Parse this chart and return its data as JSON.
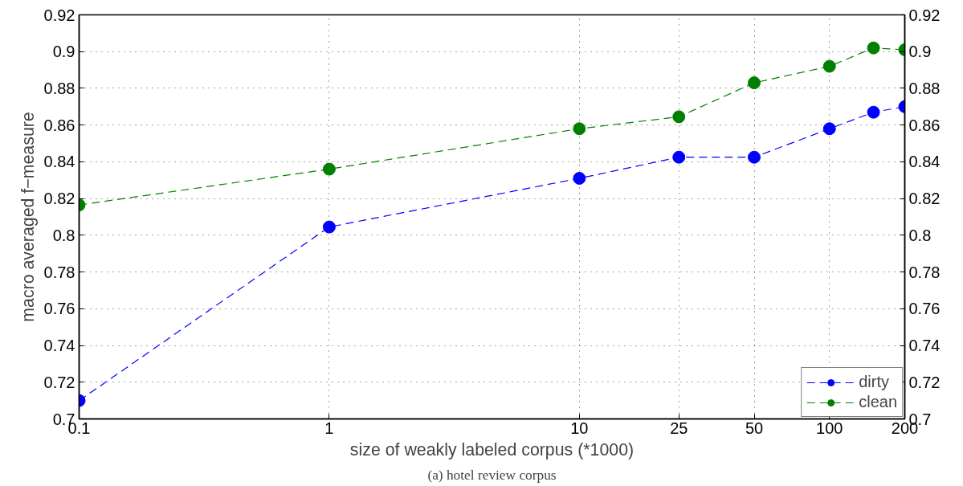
{
  "chart_data": {
    "type": "line",
    "xlabel": "size of weakly labeled corpus (*1000)",
    "ylabel": "macro averaged f−measure",
    "annotations": [
      "(a) hotel review corpus"
    ],
    "x": [
      0.1,
      1,
      10,
      25,
      50,
      100,
      150,
      200
    ],
    "series": [
      {
        "name": "dirty",
        "color": "#0000ff",
        "values": [
          0.71,
          0.8045,
          0.831,
          0.8425,
          0.8425,
          0.858,
          0.867,
          0.87
        ]
      },
      {
        "name": "clean",
        "color": "#008000",
        "values": [
          0.8165,
          0.836,
          0.858,
          0.8645,
          0.883,
          0.892,
          0.902,
          0.901
        ]
      }
    ],
    "log": "x",
    "xlim": [
      0.1,
      200
    ],
    "xticks": [
      0.1,
      1,
      10,
      25,
      50,
      100,
      200
    ],
    "ylim": [
      0.7,
      0.92
    ],
    "yticks": [
      0.7,
      0.72,
      0.74,
      0.76,
      0.78,
      0.8,
      0.82,
      0.84,
      0.86,
      0.88,
      0.9,
      0.92
    ],
    "y2lim": [
      0.7,
      0.92
    ],
    "y2ticks": [
      0.7,
      0.72,
      0.74,
      0.76,
      0.78,
      0.8,
      0.82,
      0.84,
      0.86,
      0.88,
      0.9,
      0.92
    ],
    "grid": true,
    "legend": "bottom right",
    "marker": "circle",
    "line_style": "dashed"
  }
}
